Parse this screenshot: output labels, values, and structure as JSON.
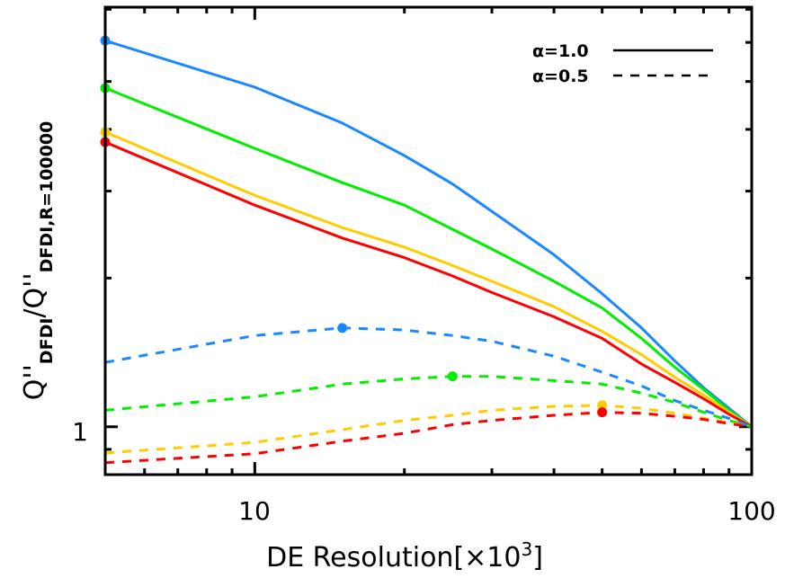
{
  "chart_data": {
    "type": "line",
    "xscale": "log",
    "yscale": "log",
    "xlim": [
      5,
      100
    ],
    "ylim": [
      0.8,
      7.07
    ],
    "grid": false,
    "legend_placement": "top-right",
    "xlabel": {
      "main": "DE Resolution[×10",
      "sup": "3",
      "end": "]"
    },
    "ylabel": {
      "part1": "Q''",
      "sub1": "DFDI",
      "part2": "/Q''",
      "sub2": "DFDI,R=100000"
    },
    "x_tick_labels": [
      {
        "value": 10,
        "label": "10"
      },
      {
        "value": 100,
        "label": "100"
      }
    ],
    "y_tick_labels": [
      {
        "value": 1,
        "label": "1"
      }
    ],
    "x_minor_ticks": [
      6,
      7,
      8,
      9,
      20,
      30,
      40,
      50,
      60,
      70,
      80,
      90
    ],
    "y_minor_ticks": [
      0.9,
      2,
      3,
      4,
      5,
      6,
      7
    ],
    "legend": [
      {
        "label": "α=1.0",
        "linestyle": "solid"
      },
      {
        "label": "α=0.5",
        "linestyle": "dashed"
      }
    ],
    "x": [
      5,
      10,
      15,
      20,
      25,
      30,
      40,
      50,
      60,
      70,
      80,
      90,
      100
    ],
    "series": [
      {
        "color": "#1a88ff",
        "linestyle": "solid",
        "marker_x": 5,
        "values": [
          6.05,
          4.87,
          4.12,
          3.54,
          3.1,
          2.73,
          2.23,
          1.86,
          1.585,
          1.36,
          1.2,
          1.09,
          1.0
        ]
      },
      {
        "color": "#00ee00",
        "linestyle": "solid",
        "marker_x": 5,
        "values": [
          4.85,
          3.66,
          3.12,
          2.81,
          2.51,
          2.29,
          1.97,
          1.74,
          1.51,
          1.32,
          1.19,
          1.08,
          1.0
        ]
      },
      {
        "color": "#ffcc00",
        "linestyle": "solid",
        "marker_x": 5,
        "values": [
          3.95,
          2.94,
          2.53,
          2.31,
          2.12,
          1.97,
          1.75,
          1.56,
          1.4,
          1.26,
          1.16,
          1.07,
          1.0
        ]
      },
      {
        "color": "#ff0000",
        "linestyle": "solid",
        "marker_x": 5,
        "values": [
          3.77,
          2.81,
          2.41,
          2.2,
          2.02,
          1.87,
          1.67,
          1.51,
          1.34,
          1.23,
          1.14,
          1.06,
          1.0
        ]
      },
      {
        "color": "#1a88ff",
        "linestyle": "dashed",
        "marker_x": 15,
        "values": [
          1.35,
          1.53,
          1.585,
          1.57,
          1.53,
          1.49,
          1.39,
          1.29,
          1.21,
          1.13,
          1.08,
          1.04,
          1.0
        ]
      },
      {
        "color": "#00ee00",
        "linestyle": "dashed",
        "marker_x": 25,
        "values": [
          1.08,
          1.15,
          1.22,
          1.25,
          1.265,
          1.265,
          1.24,
          1.22,
          1.17,
          1.12,
          1.07,
          1.03,
          1.0
        ]
      },
      {
        "color": "#ffcc00",
        "linestyle": "dashed",
        "marker_x": 50,
        "values": [
          0.885,
          0.93,
          0.987,
          1.03,
          1.055,
          1.08,
          1.1,
          1.105,
          1.09,
          1.065,
          1.04,
          1.02,
          1.0
        ]
      },
      {
        "color": "#ff0000",
        "linestyle": "dashed",
        "marker_x": 50,
        "values": [
          0.846,
          0.882,
          0.935,
          0.97,
          1.01,
          1.03,
          1.055,
          1.07,
          1.065,
          1.05,
          1.035,
          1.015,
          1.0
        ]
      }
    ]
  }
}
